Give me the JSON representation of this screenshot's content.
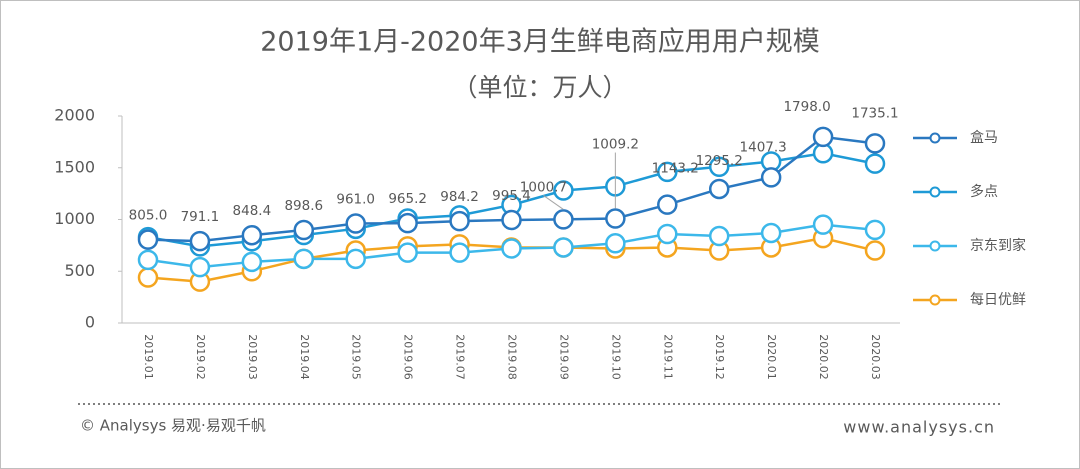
{
  "chart_data": {
    "type": "line",
    "title": "2019年1月-2020年3月生鲜电商应用用户规模",
    "subtitle": "（单位：万人）",
    "categories": [
      "2019.01",
      "2019.02",
      "2019.03",
      "2019.04",
      "2019.05",
      "2019.06",
      "2019.07",
      "2019.08",
      "2019.09",
      "2019.10",
      "2019.11",
      "2019.12",
      "2020.01",
      "2020.02",
      "2020.03"
    ],
    "series": [
      {
        "name": "盒马",
        "color": "#2a78c0",
        "values": [
          805,
          791.1,
          848.4,
          898.6,
          961,
          965.2,
          984.2,
          995.4,
          1000.7,
          1009.2,
          1143.2,
          1295.2,
          1407.3,
          1798,
          1735.1
        ],
        "value_labels": [
          "805.0",
          "791.1",
          "848.4",
          "898.6",
          "961.0",
          "965.2",
          "984.2",
          "995.4",
          "1000.7",
          "1009.2",
          "1143.2",
          "1295.2",
          "1407.3",
          "1798.0",
          "1735.1"
        ]
      },
      {
        "name": "多点",
        "color": "#1e9ad6",
        "values": [
          830,
          740,
          790,
          850,
          910,
          1010,
          1040,
          1140,
          1280,
          1320,
          1460,
          1510,
          1560,
          1640,
          1540
        ]
      },
      {
        "name": "京东到家",
        "color": "#3cb8ea",
        "values": [
          610,
          540,
          590,
          620,
          620,
          680,
          680,
          720,
          730,
          770,
          860,
          840,
          870,
          950,
          900
        ]
      },
      {
        "name": "每日优鲜",
        "color": "#f4a51f",
        "values": [
          440,
          400,
          500,
          620,
          700,
          740,
          760,
          730,
          730,
          720,
          730,
          700,
          730,
          820,
          700
        ]
      }
    ],
    "ylim": [
      0,
      2000
    ],
    "yticks": [
      0,
      500,
      1000,
      1500,
      2000
    ],
    "grid": false,
    "legend": "right"
  },
  "source": "© Analysys 易观·易观千帆",
  "website": "www.analysys.cn"
}
